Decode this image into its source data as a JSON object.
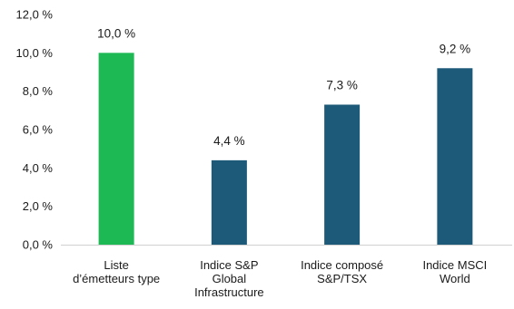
{
  "chart_data": {
    "type": "bar",
    "categories": [
      [
        "Liste",
        "d’émetteurs type"
      ],
      [
        "Indice S&P",
        "Global",
        "Infrastructure"
      ],
      [
        "Indice composé",
        "S&P/TSX"
      ],
      [
        "Indice MSCI",
        "World"
      ]
    ],
    "values": [
      10.0,
      4.4,
      7.3,
      9.2
    ],
    "data_labels": [
      "10,0 %",
      "4,4 %",
      "7,3 %",
      "9,2 %"
    ],
    "colors": [
      "#1db954",
      "#1d5a7a",
      "#1d5a7a",
      "#1d5a7a"
    ],
    "ylim": [
      0,
      12
    ],
    "yticks": [
      0,
      2,
      4,
      6,
      8,
      10,
      12
    ],
    "ytick_labels": [
      "0,0 %",
      "2,0 %",
      "4,0 %",
      "6,0 %",
      "8,0 %",
      "10,0 %",
      "12,0 %"
    ],
    "grid": false,
    "axis_color": "#d0d0d0"
  }
}
